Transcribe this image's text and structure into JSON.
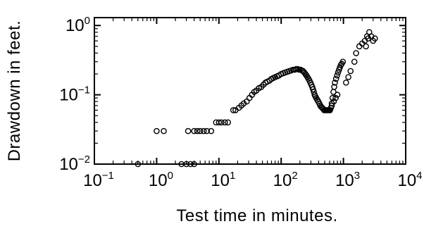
{
  "chart_data": {
    "type": "scatter",
    "title": "",
    "xlabel": "Test time in minutes.",
    "ylabel": "Drawdown in feet.",
    "xscale": "log",
    "yscale": "log",
    "xlim": [
      0.1,
      10000
    ],
    "ylim": [
      0.01,
      1.3
    ],
    "x_ticks": [
      {
        "base": "10",
        "exp": "−1"
      },
      {
        "base": "10",
        "exp": "0"
      },
      {
        "base": "10",
        "exp": "1"
      },
      {
        "base": "10",
        "exp": "2"
      },
      {
        "base": "10",
        "exp": "3"
      },
      {
        "base": "10",
        "exp": "4"
      }
    ],
    "y_ticks": [
      {
        "base": "10",
        "exp": "−2"
      },
      {
        "base": "10",
        "exp": "−1"
      },
      {
        "base": "10",
        "exp": "0"
      }
    ],
    "marker": "open-circle",
    "grid": false,
    "points": [
      [
        0.5,
        0.01
      ],
      [
        2.5,
        0.01
      ],
      [
        3.0,
        0.01
      ],
      [
        3.5,
        0.01
      ],
      [
        4.0,
        0.01
      ],
      [
        1.0,
        0.03
      ],
      [
        1.3,
        0.03
      ],
      [
        3.2,
        0.03
      ],
      [
        4.0,
        0.03
      ],
      [
        4.5,
        0.03
      ],
      [
        5.0,
        0.03
      ],
      [
        5.7,
        0.03
      ],
      [
        6.4,
        0.03
      ],
      [
        7.5,
        0.03
      ],
      [
        9.0,
        0.04
      ],
      [
        10.0,
        0.04
      ],
      [
        11.0,
        0.04
      ],
      [
        12.5,
        0.04
      ],
      [
        14.0,
        0.04
      ],
      [
        17,
        0.06
      ],
      [
        18.5,
        0.06
      ],
      [
        21,
        0.065
      ],
      [
        23,
        0.07
      ],
      [
        25,
        0.075
      ],
      [
        28,
        0.08
      ],
      [
        31,
        0.09
      ],
      [
        34,
        0.1
      ],
      [
        37,
        0.11
      ],
      [
        40,
        0.115
      ],
      [
        44,
        0.125
      ],
      [
        48,
        0.13
      ],
      [
        52,
        0.14
      ],
      [
        56,
        0.15
      ],
      [
        60,
        0.155
      ],
      [
        65,
        0.16
      ],
      [
        70,
        0.17
      ],
      [
        75,
        0.175
      ],
      [
        80,
        0.18
      ],
      [
        86,
        0.185
      ],
      [
        92,
        0.19
      ],
      [
        100,
        0.2
      ],
      [
        108,
        0.205
      ],
      [
        116,
        0.21
      ],
      [
        125,
        0.215
      ],
      [
        135,
        0.22
      ],
      [
        145,
        0.225
      ],
      [
        155,
        0.23
      ],
      [
        165,
        0.23
      ],
      [
        175,
        0.235
      ],
      [
        185,
        0.235
      ],
      [
        195,
        0.23
      ],
      [
        205,
        0.23
      ],
      [
        215,
        0.225
      ],
      [
        225,
        0.22
      ],
      [
        235,
        0.21
      ],
      [
        245,
        0.2
      ],
      [
        255,
        0.19
      ],
      [
        265,
        0.18
      ],
      [
        275,
        0.17
      ],
      [
        285,
        0.16
      ],
      [
        295,
        0.15
      ],
      [
        305,
        0.14
      ],
      [
        315,
        0.13
      ],
      [
        325,
        0.12
      ],
      [
        335,
        0.11
      ],
      [
        345,
        0.1
      ],
      [
        355,
        0.095
      ],
      [
        365,
        0.09
      ],
      [
        380,
        0.085
      ],
      [
        395,
        0.08
      ],
      [
        410,
        0.075
      ],
      [
        425,
        0.07
      ],
      [
        440,
        0.067
      ],
      [
        455,
        0.065
      ],
      [
        470,
        0.063
      ],
      [
        490,
        0.06
      ],
      [
        510,
        0.06
      ],
      [
        530,
        0.06
      ],
      [
        550,
        0.06
      ],
      [
        570,
        0.06
      ],
      [
        590,
        0.06
      ],
      [
        610,
        0.06
      ],
      [
        630,
        0.065
      ],
      [
        650,
        0.075
      ],
      [
        670,
        0.09
      ],
      [
        690,
        0.11
      ],
      [
        710,
        0.13
      ],
      [
        730,
        0.15
      ],
      [
        760,
        0.17
      ],
      [
        790,
        0.19
      ],
      [
        820,
        0.21
      ],
      [
        850,
        0.23
      ],
      [
        880,
        0.25
      ],
      [
        910,
        0.27
      ],
      [
        940,
        0.28
      ],
      [
        980,
        0.3
      ],
      [
        650,
        0.07
      ],
      [
        700,
        0.08
      ],
      [
        750,
        0.09
      ],
      [
        800,
        0.1
      ],
      [
        1100,
        0.15
      ],
      [
        1200,
        0.18
      ],
      [
        1300,
        0.22
      ],
      [
        1500,
        0.3
      ],
      [
        1600,
        0.4
      ],
      [
        1800,
        0.5
      ],
      [
        2000,
        0.55
      ],
      [
        2200,
        0.6
      ],
      [
        2400,
        0.7
      ],
      [
        2600,
        0.8
      ],
      [
        2800,
        0.7
      ],
      [
        3000,
        0.6
      ],
      [
        2300,
        0.5
      ],
      [
        2500,
        0.65
      ],
      [
        3200,
        0.65
      ]
    ]
  }
}
